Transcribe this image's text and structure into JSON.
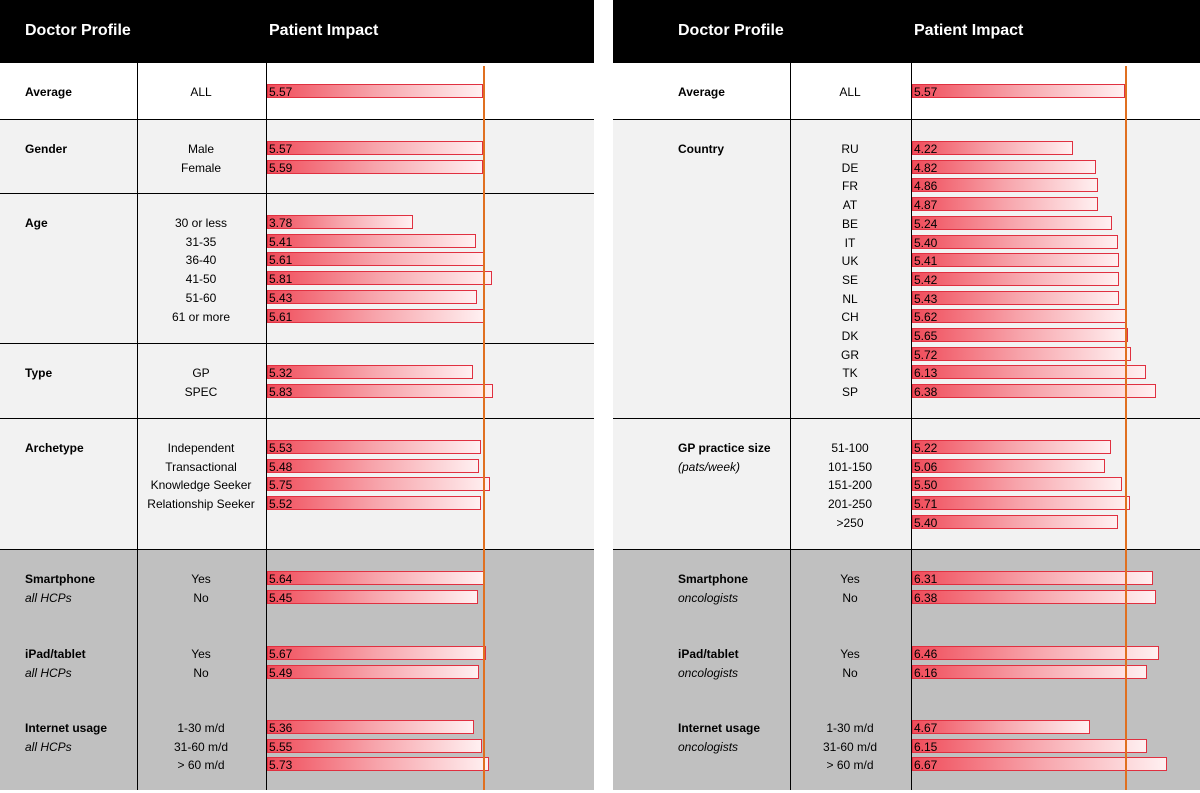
{
  "chart_data": [
    {
      "type": "bar",
      "header": {
        "profile": "Doctor Profile",
        "impact": "Patient Impact"
      },
      "reference_value": 5.57,
      "sections": [
        {
          "group": "Average",
          "sub": "",
          "shade": "light",
          "items": [
            {
              "label": "ALL",
              "value": 5.57
            }
          ]
        },
        {
          "group": "Gender",
          "sub": "",
          "shade": "light",
          "items": [
            {
              "label": "Male",
              "value": 5.57
            },
            {
              "label": "Female",
              "value": 5.59
            }
          ]
        },
        {
          "group": "Age",
          "sub": "",
          "shade": "light",
          "items": [
            {
              "label": "30 or less",
              "value": 3.78
            },
            {
              "label": "31-35",
              "value": 5.41
            },
            {
              "label": "36-40",
              "value": 5.61
            },
            {
              "label": "41-50",
              "value": 5.81
            },
            {
              "label": "51-60",
              "value": 5.43
            },
            {
              "label": "61 or more",
              "value": 5.61
            }
          ]
        },
        {
          "group": "Type",
          "sub": "",
          "shade": "light",
          "items": [
            {
              "label": "GP",
              "value": 5.32
            },
            {
              "label": "SPEC",
              "value": 5.83
            }
          ]
        },
        {
          "group": "Archetype",
          "sub": "",
          "shade": "light",
          "items": [
            {
              "label": "Independent",
              "value": 5.53
            },
            {
              "label": "Transactional",
              "value": 5.48
            },
            {
              "label": "Knowledge Seeker",
              "value": 5.75
            },
            {
              "label": "Relationship Seeker",
              "value": 5.52
            }
          ]
        },
        {
          "group": "Smartphone",
          "sub": "all HCPs",
          "shade": "dark",
          "items": [
            {
              "label": "Yes",
              "value": 5.64
            },
            {
              "label": "No",
              "value": 5.45
            }
          ]
        },
        {
          "group": "iPad/tablet",
          "sub": "all HCPs",
          "shade": "dark",
          "items": [
            {
              "label": "Yes",
              "value": 5.67
            },
            {
              "label": "No",
              "value": 5.49
            }
          ]
        },
        {
          "group": "Internet usage",
          "sub": "all HCPs",
          "shade": "dark",
          "items": [
            {
              "label": "1-30 m/d",
              "value": 5.36
            },
            {
              "label": "31-60 m/d",
              "value": 5.55
            },
            {
              "label": "> 60 m/d",
              "value": 5.73
            }
          ]
        }
      ]
    },
    {
      "type": "bar",
      "header": {
        "profile": "Doctor Profile",
        "impact": "Patient Impact"
      },
      "reference_value": 5.57,
      "sections": [
        {
          "group": "Average",
          "sub": "",
          "shade": "light",
          "items": [
            {
              "label": "ALL",
              "value": 5.57
            }
          ]
        },
        {
          "group": "Country",
          "sub": "",
          "shade": "light",
          "items": [
            {
              "label": "RU",
              "value": 4.22
            },
            {
              "label": "DE",
              "value": 4.82
            },
            {
              "label": "FR",
              "value": 4.86
            },
            {
              "label": "AT",
              "value": 4.87
            },
            {
              "label": "BE",
              "value": 5.24
            },
            {
              "label": "IT",
              "value": 5.4
            },
            {
              "label": "UK",
              "value": 5.41
            },
            {
              "label": "SE",
              "value": 5.42
            },
            {
              "label": "NL",
              "value": 5.43
            },
            {
              "label": "CH",
              "value": 5.62
            },
            {
              "label": "DK",
              "value": 5.65
            },
            {
              "label": "GR",
              "value": 5.72
            },
            {
              "label": "TK",
              "value": 6.13
            },
            {
              "label": "SP",
              "value": 6.38
            }
          ]
        },
        {
          "group": "GP practice size",
          "sub": "(pats/week)",
          "shade": "light",
          "items": [
            {
              "label": "51-100",
              "value": 5.22
            },
            {
              "label": "101-150",
              "value": 5.06
            },
            {
              "label": "151-200",
              "value": 5.5
            },
            {
              "label": "201-250",
              "value": 5.71
            },
            {
              "label": ">250",
              "value": 5.4
            }
          ]
        },
        {
          "group": "Smartphone",
          "sub": "oncologists",
          "shade": "dark",
          "items": [
            {
              "label": "Yes",
              "value": 6.31
            },
            {
              "label": "No",
              "value": 6.38
            }
          ]
        },
        {
          "group": "iPad/tablet",
          "sub": "oncologists",
          "shade": "dark",
          "items": [
            {
              "label": "Yes",
              "value": 6.46
            },
            {
              "label": "No",
              "value": 6.16
            }
          ]
        },
        {
          "group": "Internet usage",
          "sub": "oncologists",
          "shade": "dark",
          "items": [
            {
              "label": "1-30 m/d",
              "value": 4.67
            },
            {
              "label": "31-60 m/d",
              "value": 6.15
            },
            {
              "label": "> 60 m/d",
              "value": 6.67
            }
          ]
        }
      ]
    }
  ]
}
